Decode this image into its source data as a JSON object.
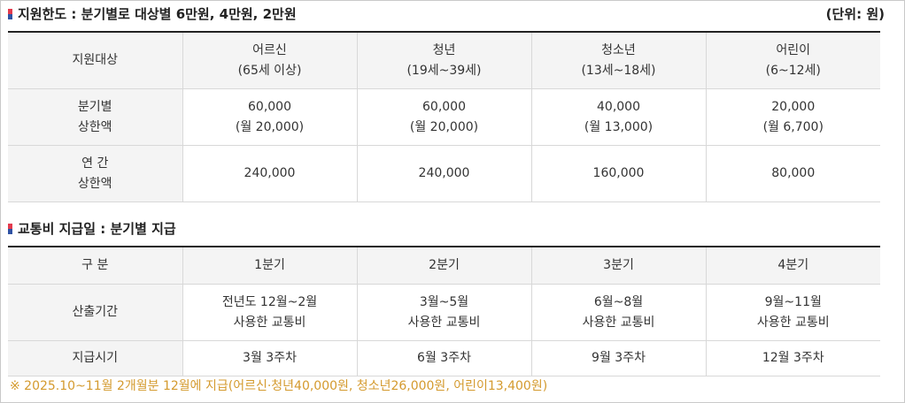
{
  "section1": {
    "title": "지원한도 : 분기별로 대상별 6만원, 4만원, 2만원",
    "unit": "(단위: 원)",
    "header": {
      "label": "지원대상",
      "cols": [
        {
          "l1": "어르신",
          "l2": "(65세 이상)"
        },
        {
          "l1": "청년",
          "l2": "(19세~39세)"
        },
        {
          "l1": "청소년",
          "l2": "(13세~18세)"
        },
        {
          "l1": "어린이",
          "l2": "(6~12세)"
        }
      ]
    },
    "quarterly": {
      "l1": "분기별",
      "l2": "상한액",
      "cols": [
        {
          "l1": "60,000",
          "l2": "(월 20,000)"
        },
        {
          "l1": "60,000",
          "l2": "(월 20,000)"
        },
        {
          "l1": "40,000",
          "l2": "(월 13,000)"
        },
        {
          "l1": "20,000",
          "l2": "(월 6,700)"
        }
      ]
    },
    "annual": {
      "l1": "연 간",
      "l2": "상한액",
      "values": [
        "240,000",
        "240,000",
        "160,000",
        "80,000"
      ]
    }
  },
  "section2": {
    "title": "교통비 지급일 : 분기별 지급",
    "header": {
      "label": "구 분",
      "cols": [
        "1분기",
        "2분기",
        "3분기",
        "4분기"
      ]
    },
    "period": {
      "label": "산출기간",
      "cols": [
        {
          "l1": "전년도 12월~2월",
          "l2": "사용한 교통비"
        },
        {
          "l1": "3월~5월",
          "l2": "사용한 교통비"
        },
        {
          "l1": "6월~8월",
          "l2": "사용한 교통비"
        },
        {
          "l1": "9월~11월",
          "l2": "사용한 교통비"
        }
      ]
    },
    "payday": {
      "label": "지급시기",
      "values": [
        "3월 3주차",
        "6월 3주차",
        "9월 3주차",
        "12월 3주차"
      ]
    }
  },
  "note": "※ 2025.10~11월 2개월분 12월에 지급(어르신·청년40,000원, 청소년26,000원, 어린이13,400원)",
  "colors": {
    "accent_red": "#e33b4e",
    "accent_blue": "#2f52a3",
    "note_text": "#d49a2e",
    "header_bg": "#f4f4f4"
  }
}
